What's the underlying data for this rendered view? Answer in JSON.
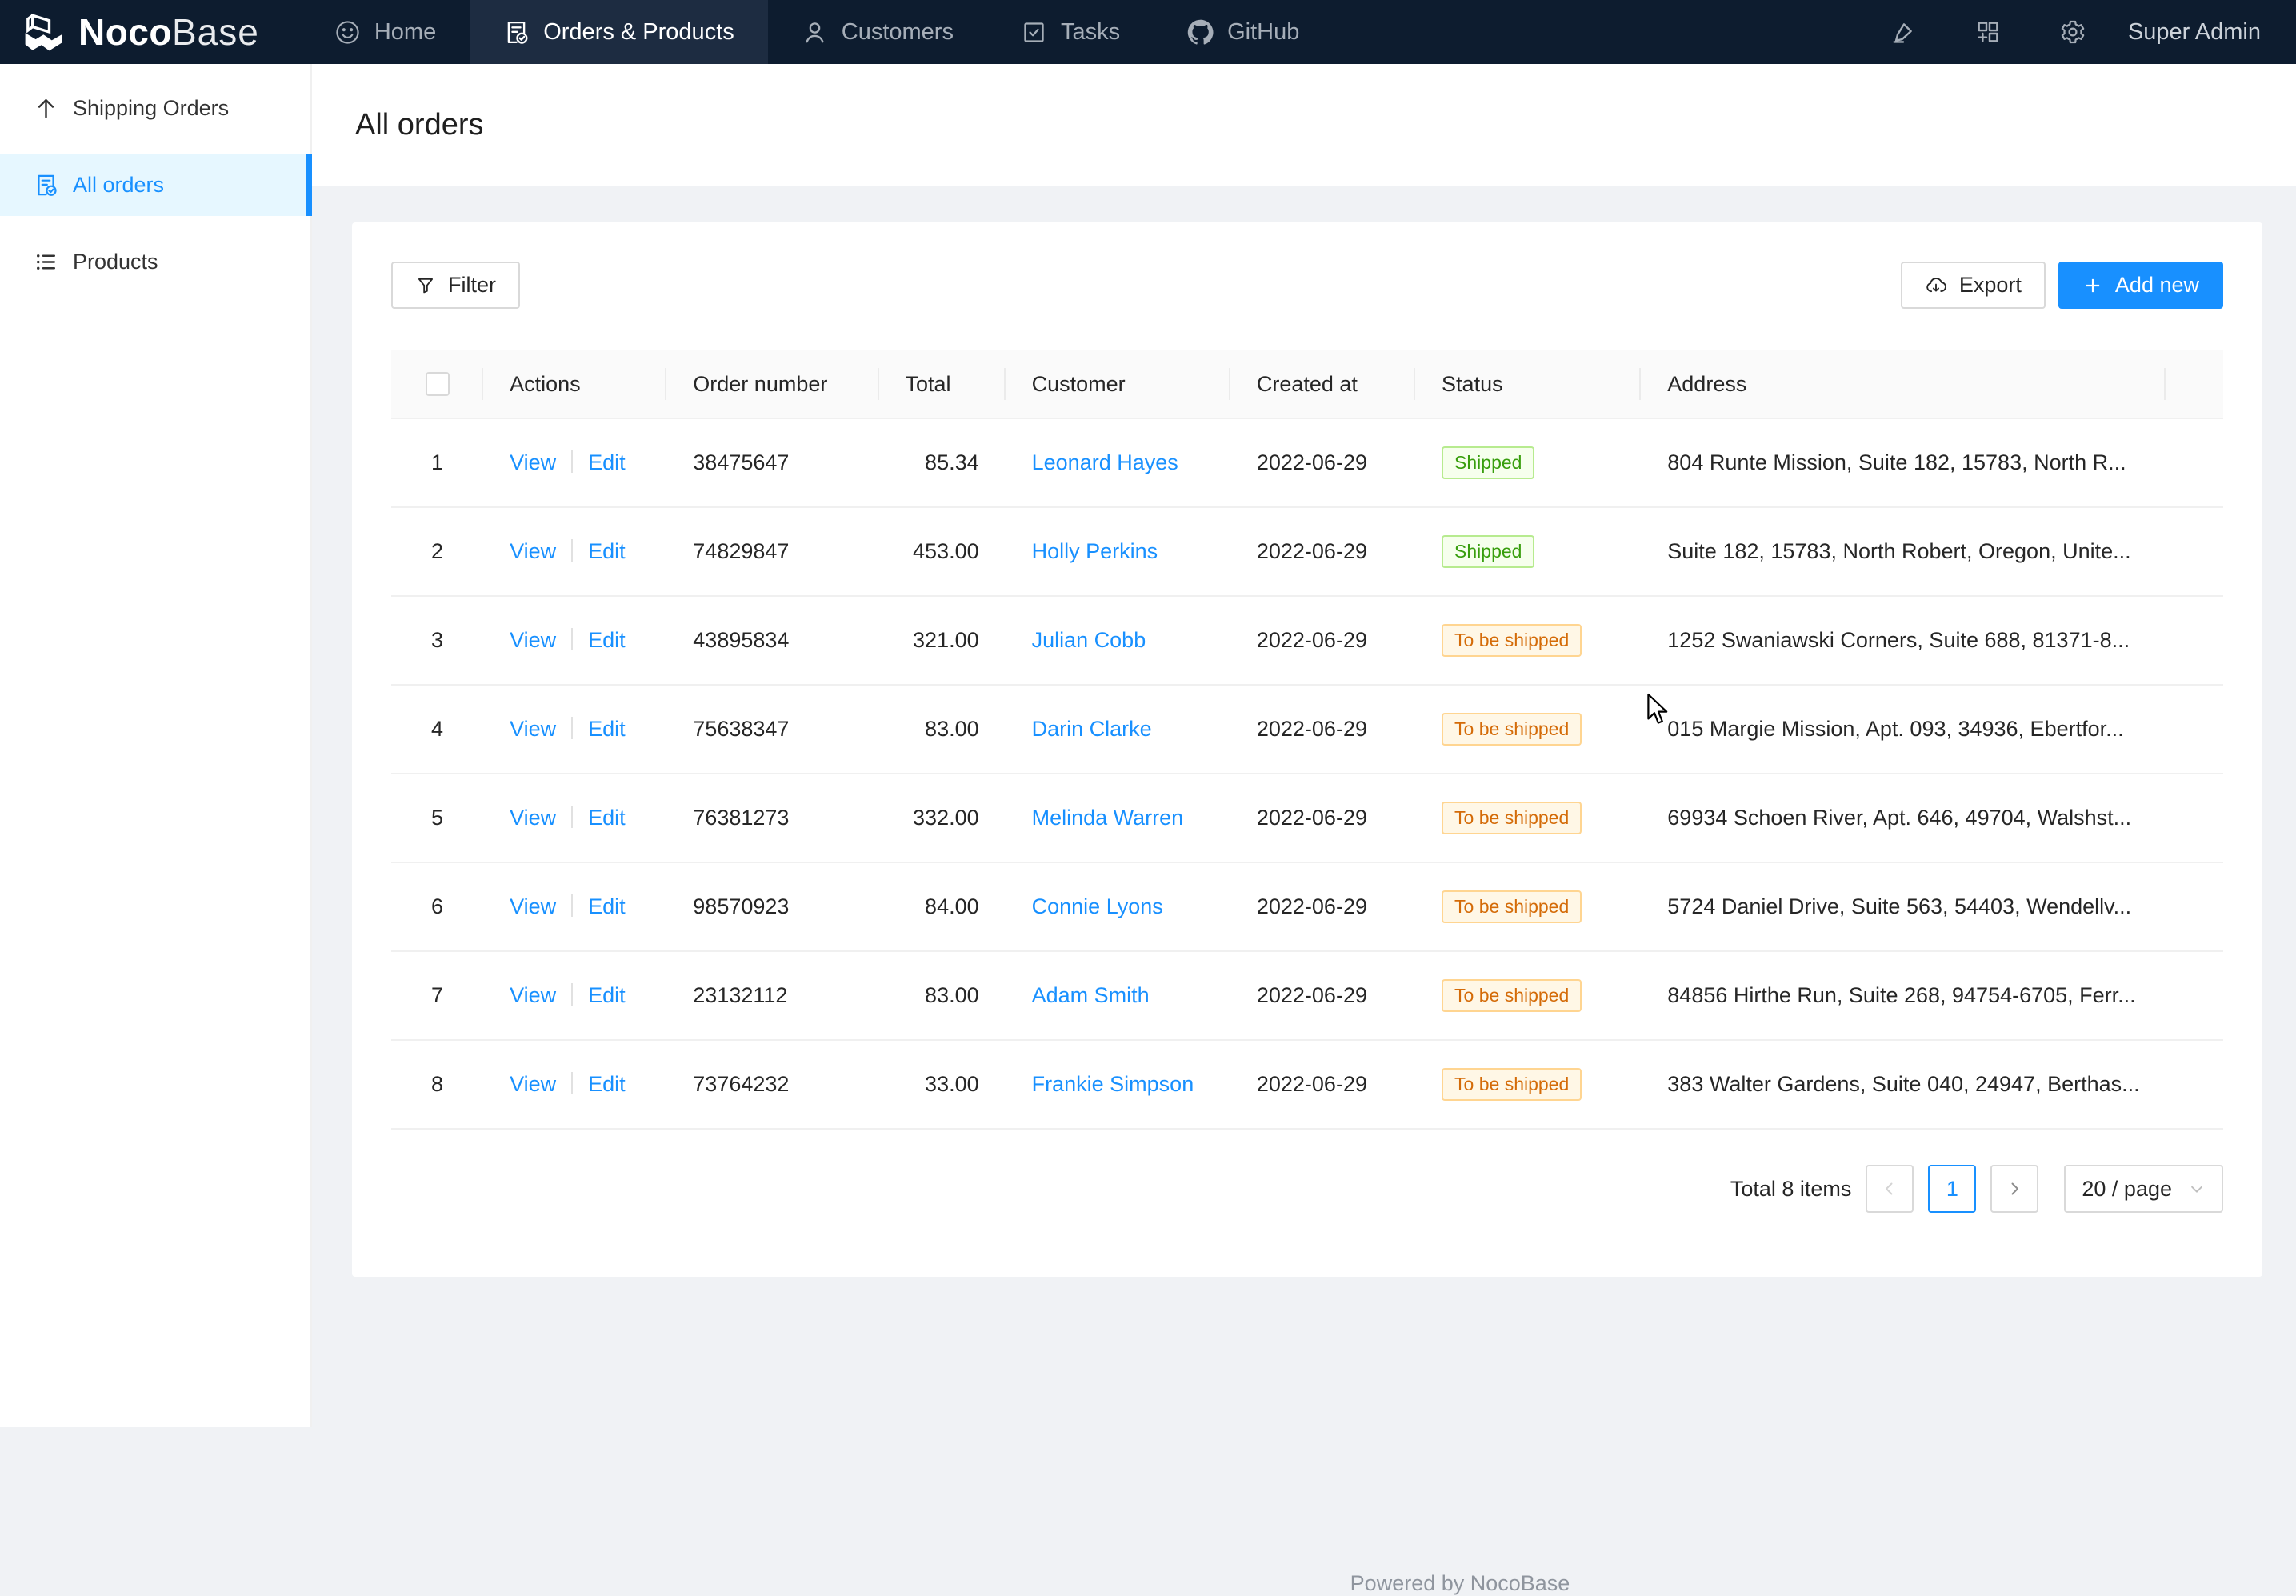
{
  "navbar": {
    "logo": {
      "bold": "Noco",
      "light": "Base"
    },
    "tabs": [
      {
        "label": "Home",
        "icon": "smile-icon",
        "active": false
      },
      {
        "label": "Orders & Products",
        "icon": "file-done-icon",
        "active": true
      },
      {
        "label": "Customers",
        "icon": "user-icon",
        "active": false
      },
      {
        "label": "Tasks",
        "icon": "check-square-icon",
        "active": false
      },
      {
        "label": "GitHub",
        "icon": "github-icon",
        "active": false
      }
    ],
    "action_icons": [
      "highlighter-icon",
      "appstore-add-icon",
      "gear-icon"
    ],
    "user": "Super Admin"
  },
  "sidebar": {
    "items": [
      {
        "label": "Shipping Orders",
        "icon": "arrow-up-icon",
        "active": false
      },
      {
        "label": "All orders",
        "icon": "file-done-icon",
        "active": true
      },
      {
        "label": "Products",
        "icon": "list-icon",
        "active": false
      }
    ]
  },
  "page": {
    "title": "All orders"
  },
  "toolbar": {
    "filter_label": "Filter",
    "export_label": "Export",
    "add_new_label": "Add new"
  },
  "table": {
    "columns": [
      "",
      "Actions",
      "Order number",
      "Total",
      "Customer",
      "Created at",
      "Status",
      "Address",
      ""
    ],
    "action_labels": {
      "view": "View",
      "edit": "Edit"
    },
    "rows": [
      {
        "index": 1,
        "order_number": "38475647",
        "total": "85.34",
        "customer": "Leonard Hayes",
        "created_at": "2022-06-29",
        "status": "Shipped",
        "status_type": "success",
        "address": "804 Runte Mission, Suite 182, 15783, North R..."
      },
      {
        "index": 2,
        "order_number": "74829847",
        "total": "453.00",
        "customer": "Holly Perkins",
        "created_at": "2022-06-29",
        "status": "Shipped",
        "status_type": "success",
        "address": "Suite 182, 15783, North Robert, Oregon, Unite..."
      },
      {
        "index": 3,
        "order_number": "43895834",
        "total": "321.00",
        "customer": "Julian Cobb",
        "created_at": "2022-06-29",
        "status": "To be shipped",
        "status_type": "warning",
        "address": "1252 Swaniawski Corners, Suite 688, 81371-8..."
      },
      {
        "index": 4,
        "order_number": "75638347",
        "total": "83.00",
        "customer": "Darin Clarke",
        "created_at": "2022-06-29",
        "status": "To be shipped",
        "status_type": "warning",
        "address": "015 Margie Mission, Apt. 093, 34936, Ebertfor..."
      },
      {
        "index": 5,
        "order_number": "76381273",
        "total": "332.00",
        "customer": "Melinda Warren",
        "created_at": "2022-06-29",
        "status": "To be shipped",
        "status_type": "warning",
        "address": "69934 Schoen River, Apt. 646, 49704, Walshst..."
      },
      {
        "index": 6,
        "order_number": "98570923",
        "total": "84.00",
        "customer": "Connie Lyons",
        "created_at": "2022-06-29",
        "status": "To be shipped",
        "status_type": "warning",
        "address": "5724 Daniel Drive, Suite 563, 54403, Wendellv..."
      },
      {
        "index": 7,
        "order_number": "23132112",
        "total": "83.00",
        "customer": "Adam Smith",
        "created_at": "2022-06-29",
        "status": "To be shipped",
        "status_type": "warning",
        "address": "84856 Hirthe Run, Suite 268, 94754-6705, Ferr..."
      },
      {
        "index": 8,
        "order_number": "73764232",
        "total": "33.00",
        "customer": "Frankie Simpson",
        "created_at": "2022-06-29",
        "status": "To be shipped",
        "status_type": "warning",
        "address": "383 Walter Gardens, Suite 040, 24947, Berthas..."
      }
    ]
  },
  "pagination": {
    "total_label": "Total 8 items",
    "current_page": "1",
    "page_size": "20 / page"
  },
  "footer": {
    "text": "Powered by NocoBase"
  },
  "colors": {
    "accent": "#1890ff",
    "navbar_bg": "#0d1c2f",
    "navbar_active_bg": "#1d2c41",
    "sidebar_selected_bg": "#e6f7ff",
    "success_text": "#389e0d",
    "success_bg": "#f6ffed",
    "success_border": "#b7eb8f",
    "warning_text": "#d46b08",
    "warning_bg": "#fff7e6",
    "warning_border": "#ffd591"
  }
}
